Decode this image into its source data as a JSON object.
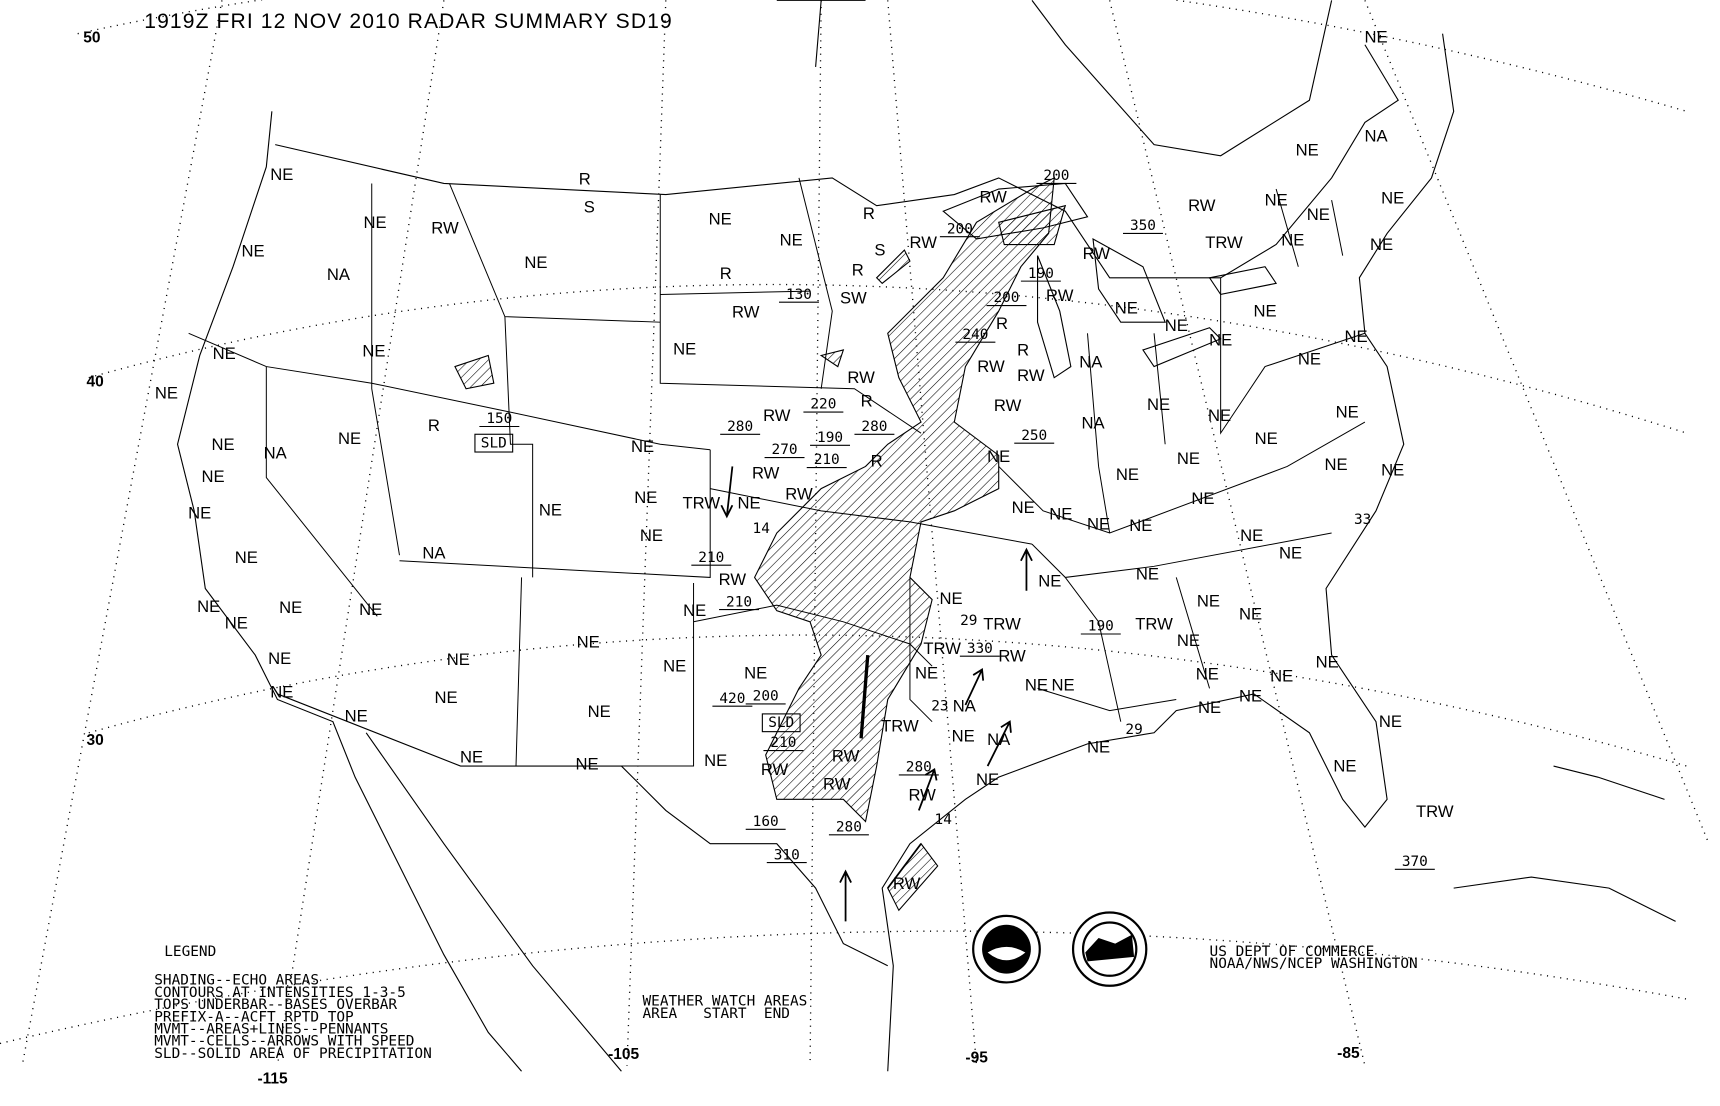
{
  "title": "1919Z FRI 12 NOV 2010 RADAR SUMMARY SD19",
  "latitude_labels": [
    "50",
    "40",
    "30"
  ],
  "longitude_labels": [
    "-115",
    "-105",
    "-95",
    "-85"
  ],
  "legend": {
    "heading": "LEGEND",
    "lines": [
      "SHADING--ECHO AREAS",
      "CONTOURS AT INTENSITIES 1-3-5",
      "TOPS UNDERBAR--BASES OVERBAR",
      "PREFIX-A--ACFT RPTD TOP",
      "MVMT--AREAS+LINES--PENNANTS",
      "MVMT--CELLS--ARROWS WITH SPEED",
      "SLD--SOLID AREA OF PRECIPITATION"
    ]
  },
  "watch_areas": {
    "heading": "WEATHER WATCH AREAS",
    "columns": "AREA   START  END"
  },
  "agency": [
    "US DEPT OF COMMERCE",
    "NOAA/NWS/NCEP WASHINGTON"
  ],
  "logos": [
    "NOAA",
    "NATIONAL WEATHER SERVICE"
  ],
  "map_labels": [
    "NE",
    "NE",
    "NA",
    "RW",
    "NE",
    "NE",
    "NE",
    "350",
    "TRW",
    "NE",
    "NE",
    "200",
    "RW",
    "200",
    "RW",
    "R",
    "S",
    "190",
    "RW",
    "RW",
    "200",
    "R",
    "R",
    "SW",
    "130",
    "RW",
    "NE",
    "NE",
    "NE",
    "NA",
    "NE",
    "NE",
    "NE",
    "150",
    "SLD",
    "R",
    "NE",
    "NE",
    "NA",
    "NE",
    "NE",
    "NE",
    "NA",
    "NE",
    "NE",
    "NE",
    "NE",
    "NE",
    "NE",
    "NE",
    "NE",
    "NE",
    "NE",
    "NE",
    "NE",
    "NE",
    "NE",
    "NE",
    "NE",
    "NE",
    "NE",
    "NE",
    "NE",
    "NE",
    "NE",
    "R",
    "R",
    "S",
    "RW",
    "NE",
    "280",
    "RW",
    "270",
    "220",
    "RW",
    "R",
    "190",
    "280",
    "R",
    "210",
    "RW",
    "RW",
    "NE",
    "TRW",
    "14",
    "210",
    "RW",
    "210",
    "NE",
    "NE",
    "NE",
    "NE",
    "NE",
    "NE",
    "NE",
    "NA",
    "RW",
    "RW",
    "R",
    "RW",
    "240",
    "250",
    "NE",
    "NA",
    "NE",
    "NE",
    "NE",
    "NE",
    "NE",
    "NE",
    "NE",
    "NE",
    "NE",
    "33",
    "NE",
    "NE",
    "NE",
    "NE",
    "NE",
    "NE",
    "NE",
    "NE",
    "NE",
    "NE",
    "NE",
    "TRW",
    "190",
    "NE",
    "29",
    "TRW",
    "RW",
    "TRW",
    "330",
    "NE",
    "23",
    "NA",
    "NE",
    "NE",
    "NE",
    "NE",
    "NE",
    "NE",
    "NE",
    "NE",
    "29",
    "NE",
    "NE",
    "NA",
    "NE",
    "NE",
    "TRW",
    "370",
    "NE",
    "200",
    "420",
    "SLD",
    "210",
    "TRW",
    "RW",
    "RW",
    "RW",
    "280",
    "RW",
    "14",
    "160",
    "280",
    "310",
    "RW"
  ],
  "colors": {
    "background": "#ffffff",
    "ink": "#000000"
  }
}
